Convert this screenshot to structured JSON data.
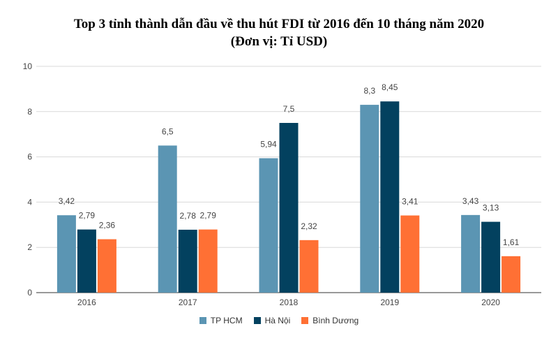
{
  "chart_data": {
    "type": "bar",
    "title": "Top 3 tỉnh thành dẫn đầu về thu hút FDI từ 2016 đến 10 tháng năm 2020",
    "subtitle": "(Đơn vị: Tỉ USD)",
    "categories": [
      "2016",
      "2017",
      "2018",
      "2019",
      "2020"
    ],
    "series": [
      {
        "name": "TP HCM",
        "color": "#5b95b3",
        "values": [
          3.42,
          6.5,
          5.94,
          8.3,
          3.43
        ],
        "labels": [
          "3,42",
          "6,5",
          "5,94",
          "8,3",
          "3,43"
        ]
      },
      {
        "name": "Hà Nội",
        "color": "#03415f",
        "values": [
          2.79,
          2.78,
          7.5,
          8.45,
          3.13
        ],
        "labels": [
          "2,79",
          "2,78",
          "7,5",
          "8,45",
          "3,13"
        ]
      },
      {
        "name": "Bình Dương",
        "color": "#ff7034",
        "values": [
          2.36,
          2.79,
          2.32,
          3.41,
          1.61
        ],
        "labels": [
          "2,36",
          "2,79",
          "2,32",
          "3,41",
          "1,61"
        ]
      }
    ],
    "ylim": [
      0,
      10
    ],
    "yticks": [
      "0",
      "2",
      "4",
      "6",
      "8",
      "10"
    ],
    "grid": true,
    "legend": "bottom"
  }
}
